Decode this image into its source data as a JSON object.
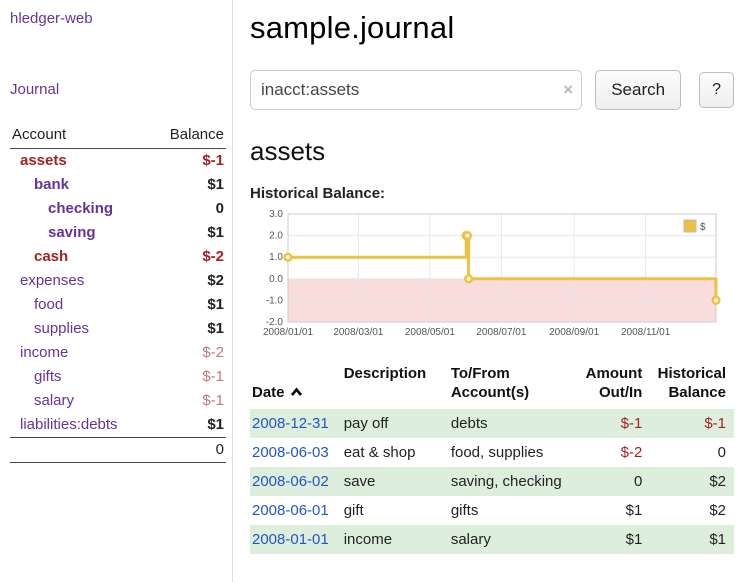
{
  "colors": {
    "accent": "#663399",
    "link_blue": "#2255cc",
    "neg": "#a42222",
    "soft_neg": "#c47878",
    "row_green": "#ddeedd",
    "chart_yellow": "#edc240"
  },
  "app_title": "hledger-web",
  "sidebar": {
    "journal_link": "Journal",
    "accounts": {
      "header_account": "Account",
      "header_balance": "Balance",
      "rows": [
        {
          "account": "assets",
          "balance": "$-1",
          "indent": 0,
          "acct_classes": [
            "bold",
            "neg"
          ],
          "bal_classes": [
            "bold",
            "neg"
          ]
        },
        {
          "account": "bank",
          "balance": "$1",
          "indent": 1,
          "acct_classes": [
            "bold"
          ],
          "bal_classes": [
            "bold"
          ]
        },
        {
          "account": "checking",
          "balance": "0",
          "indent": 2,
          "acct_classes": [
            "bold"
          ],
          "bal_classes": [
            "bold"
          ]
        },
        {
          "account": "saving",
          "balance": "$1",
          "indent": 2,
          "acct_classes": [
            "bold"
          ],
          "bal_classes": [
            "bold"
          ]
        },
        {
          "account": "cash",
          "balance": "$-2",
          "indent": 1,
          "acct_classes": [
            "bold",
            "neg"
          ],
          "bal_classes": [
            "bold",
            "neg"
          ]
        },
        {
          "account": "expenses",
          "balance": "$2",
          "indent": 0,
          "acct_classes": [],
          "bal_classes": [
            "bold"
          ]
        },
        {
          "account": "food",
          "balance": "$1",
          "indent": 1,
          "acct_classes": [],
          "bal_classes": [
            "bold"
          ]
        },
        {
          "account": "supplies",
          "balance": "$1",
          "indent": 1,
          "acct_classes": [],
          "bal_classes": [
            "bold"
          ]
        },
        {
          "account": "income",
          "balance": "$-2",
          "indent": 0,
          "acct_classes": [],
          "bal_classes": [
            "softneg"
          ]
        },
        {
          "account": "gifts",
          "balance": "$-1",
          "indent": 1,
          "acct_classes": [],
          "bal_classes": [
            "softneg"
          ]
        },
        {
          "account": "salary",
          "balance": "$-1",
          "indent": 1,
          "acct_classes": [],
          "bal_classes": [
            "softneg"
          ]
        },
        {
          "account": "liabilities:debts",
          "balance": "$1",
          "indent": 0,
          "acct_classes": [],
          "bal_classes": [
            "bold"
          ]
        }
      ],
      "total": "0"
    }
  },
  "main": {
    "title": "sample.journal",
    "search": {
      "value": "inacct:assets",
      "clear": "×",
      "button": "Search",
      "help": "?"
    },
    "heading": "assets",
    "chart_title": "Historical Balance:"
  },
  "chart_data": {
    "type": "line",
    "step": true,
    "title": "Historical Balance",
    "x_type": "date",
    "xlim": [
      "2008-01-01",
      "2008-12-31"
    ],
    "ylim": [
      -2,
      3
    ],
    "x_ticks": [
      "2008-01-01",
      "2008-03-01",
      "2008-05-01",
      "2008-07-01",
      "2008-09-01",
      "2008-11-01"
    ],
    "x_tick_labels": [
      "2008/01/01",
      "2008/03/01",
      "2008/05/01",
      "2008/07/01",
      "2008/09/01",
      "2008/11/01"
    ],
    "y_ticks": [
      3.0,
      2.0,
      1.0,
      0.0,
      -1.0,
      -2.0
    ],
    "y_tick_labels": [
      "3.0",
      "2.0",
      "1.0",
      "0.0",
      "-1.0",
      "-2.0"
    ],
    "grid": true,
    "negative_region_color": "#f9dcdc",
    "legend": {
      "position": "top-right",
      "entries": [
        {
          "label": "$",
          "color": "#edc240"
        }
      ]
    },
    "series": [
      {
        "name": "$",
        "color": "#edc240",
        "points": [
          {
            "date": "2008-01-01",
            "value": 1
          },
          {
            "date": "2008-06-01",
            "value": 2
          },
          {
            "date": "2008-06-02",
            "value": 2
          },
          {
            "date": "2008-06-03",
            "value": 0
          },
          {
            "date": "2008-12-31",
            "value": -1
          }
        ]
      }
    ]
  },
  "register": {
    "headers": {
      "date": "Date",
      "description": "Description",
      "accounts": "To/From\nAccount(s)",
      "amount": "Amount\nOut/In",
      "balance": "Historical\nBalance"
    },
    "rows": [
      {
        "date": "2008-12-31",
        "description": "pay off",
        "accounts": "debts",
        "amount": "$-1",
        "balance": "$-1",
        "amount_neg": true,
        "balance_neg": true,
        "highlight": true
      },
      {
        "date": "2008-06-03",
        "description": "eat & shop",
        "accounts": "food, supplies",
        "amount": "$-2",
        "balance": "0",
        "amount_neg": true,
        "balance_neg": false,
        "highlight": false
      },
      {
        "date": "2008-06-02",
        "description": "save",
        "accounts": "saving, checking",
        "amount": "0",
        "balance": "$2",
        "amount_neg": false,
        "balance_neg": false,
        "highlight": true
      },
      {
        "date": "2008-06-01",
        "description": "gift",
        "accounts": "gifts",
        "amount": "$1",
        "balance": "$2",
        "amount_neg": false,
        "balance_neg": false,
        "highlight": false
      },
      {
        "date": "2008-01-01",
        "description": "income",
        "accounts": "salary",
        "amount": "$1",
        "balance": "$1",
        "amount_neg": false,
        "balance_neg": false,
        "highlight": true
      }
    ]
  }
}
